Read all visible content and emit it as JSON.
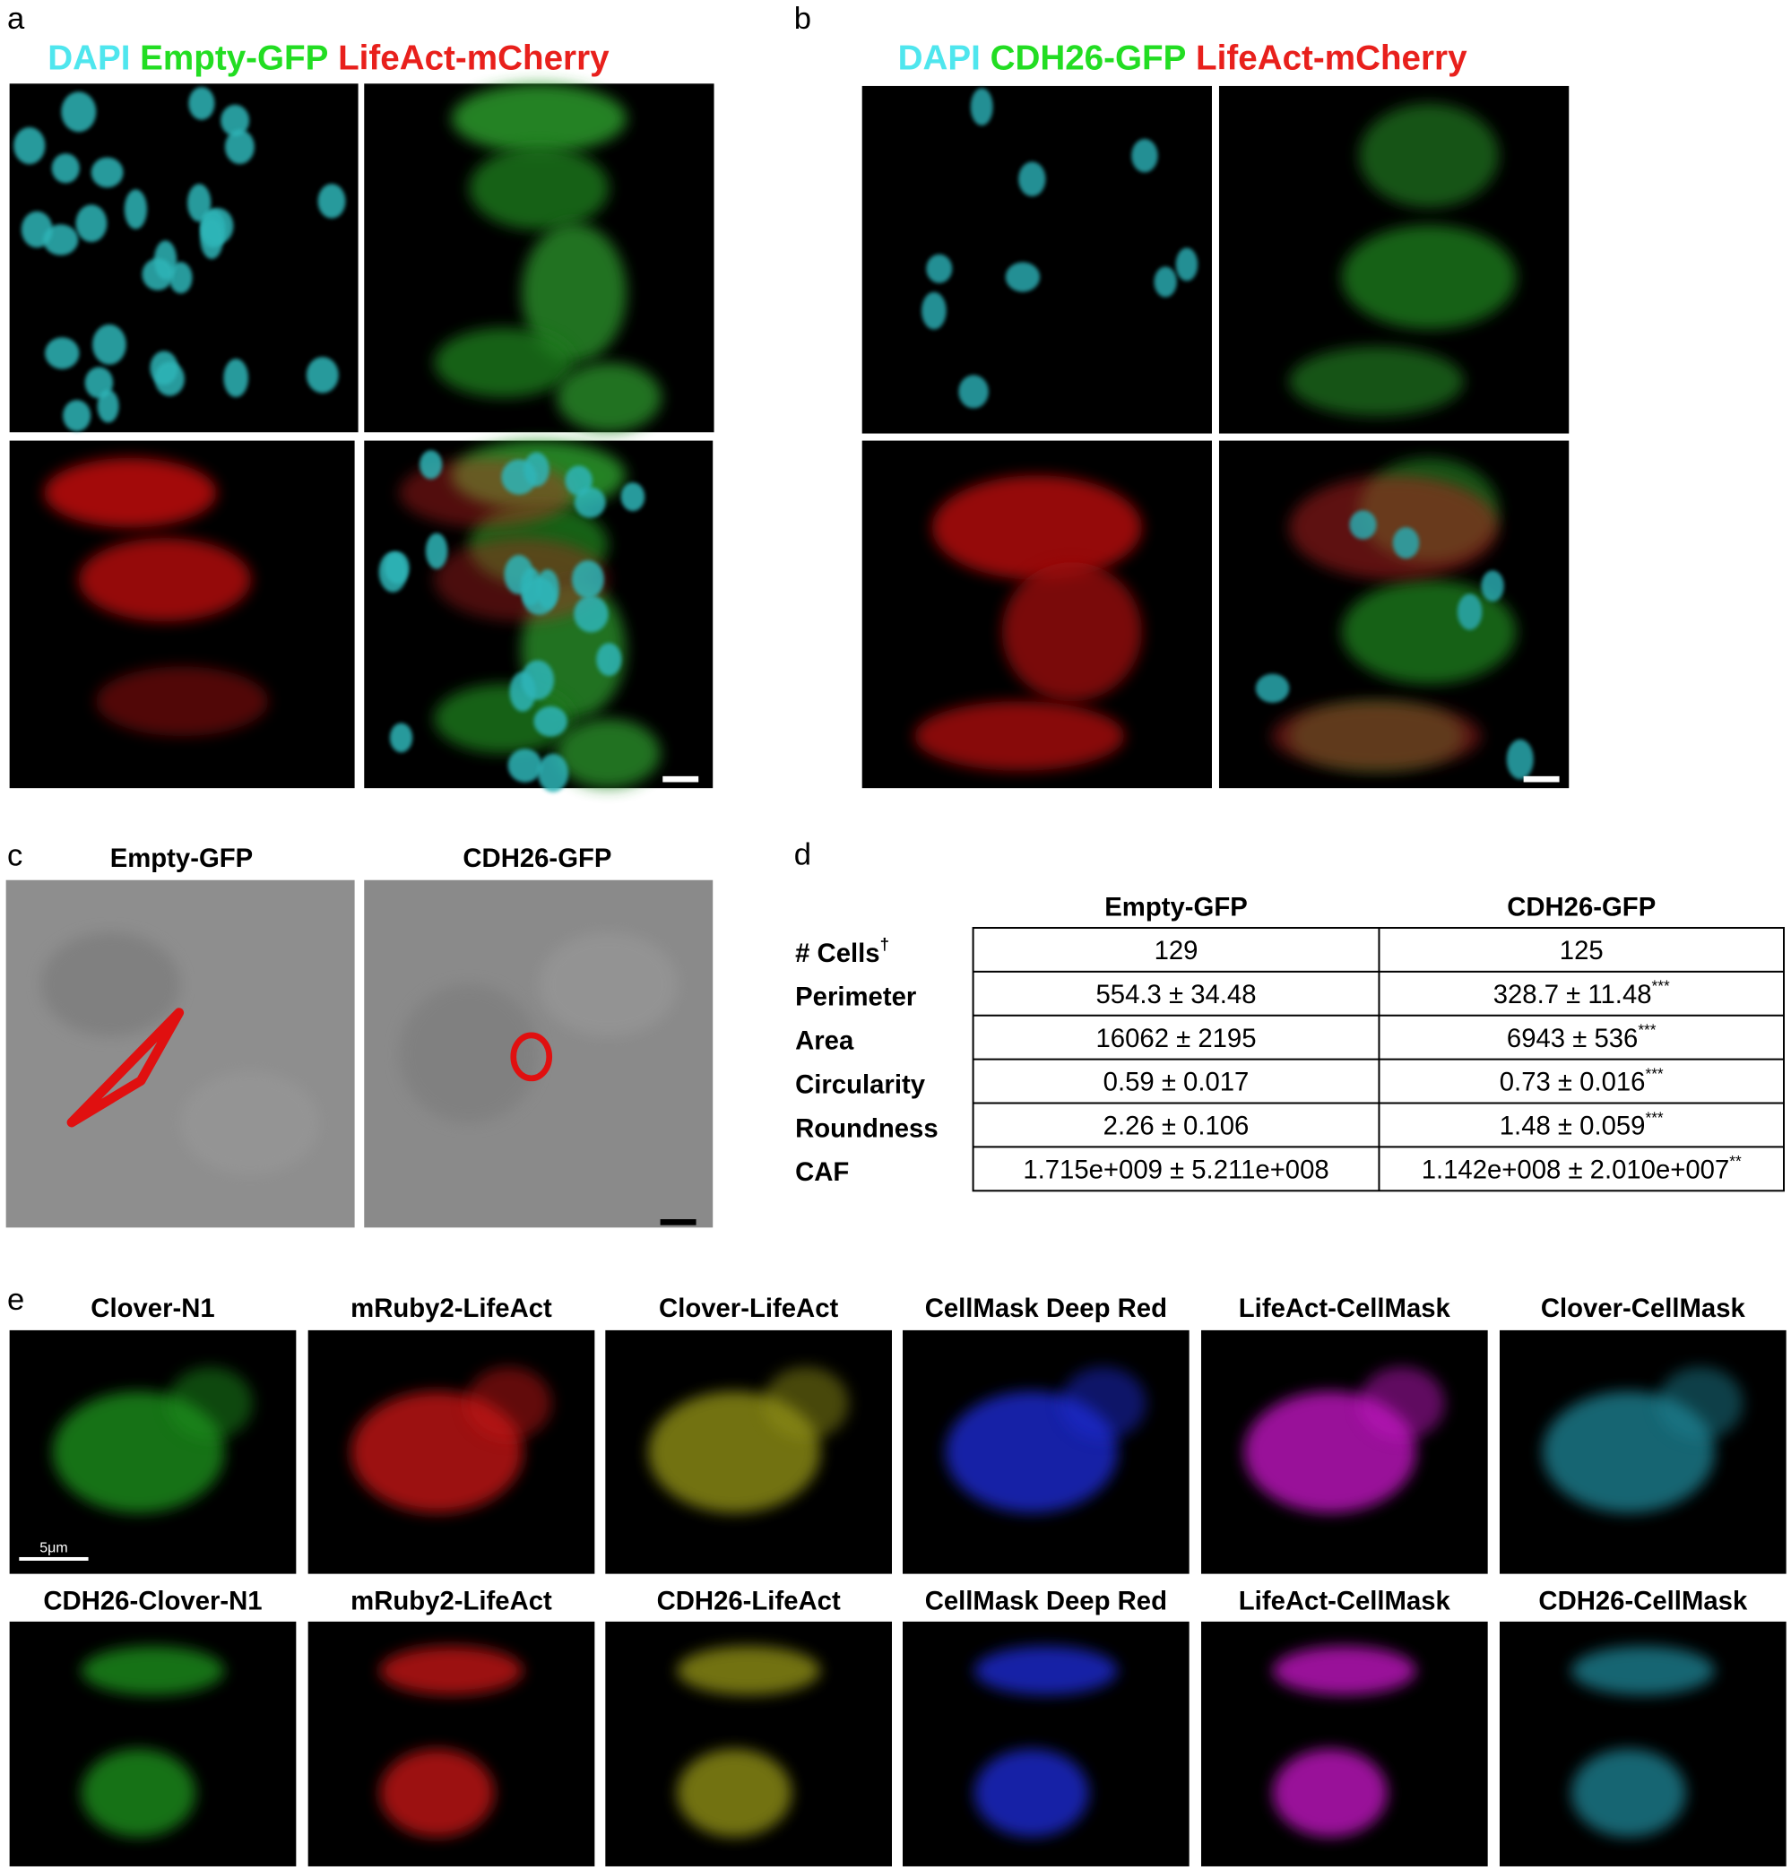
{
  "panel_a": {
    "label": "a",
    "title": [
      "DAPI",
      "Empty-GFP",
      "LifeAct-mCherry"
    ]
  },
  "panel_b": {
    "label": "b",
    "title": [
      "DAPI",
      "CDH26-GFP",
      "LifeAct-mCherry"
    ]
  },
  "panel_c": {
    "label": "c",
    "images": [
      "Empty-GFP",
      "CDH26-GFP"
    ]
  },
  "panel_d": {
    "label": "d",
    "table": {
      "columns": [
        "Empty-GFP",
        "CDH26-GFP"
      ],
      "rows": [
        {
          "label": "# Cells",
          "label_sup": "†",
          "cells": [
            {
              "text": "129"
            },
            {
              "text": "125"
            }
          ]
        },
        {
          "label": "Perimeter",
          "cells": [
            {
              "text": "554.3 ± 34.48"
            },
            {
              "text": "328.7 ± 11.48",
              "sup": "***"
            }
          ]
        },
        {
          "label": "Area",
          "cells": [
            {
              "text": "16062 ± 2195"
            },
            {
              "text": "6943 ± 536",
              "sup": "***"
            }
          ]
        },
        {
          "label": "Circularity",
          "cells": [
            {
              "text": "0.59 ± 0.017"
            },
            {
              "text": "0.73 ± 0.016",
              "sup": "***"
            }
          ]
        },
        {
          "label": "Roundness",
          "cells": [
            {
              "text": "2.26 ± 0.106"
            },
            {
              "text": "1.48 ± 0.059",
              "sup": "***"
            }
          ]
        },
        {
          "label": "CAF",
          "cells": [
            {
              "text": "1.715e+009 ± 5.211e+008"
            },
            {
              "text": "1.142e+008 ± 2.010e+007",
              "sup": "**"
            }
          ]
        }
      ]
    }
  },
  "panel_e": {
    "label": "e",
    "rows": [
      [
        "Clover-N1",
        "mRuby2-LifeAct",
        "Clover-LifeAct",
        "CellMask Deep Red",
        "LifeAct-CellMask",
        "Clover-CellMask"
      ],
      [
        "CDH26-Clover-N1",
        "mRuby2-LifeAct",
        "CDH26-LifeAct",
        "CellMask Deep Red",
        "LifeAct-CellMask",
        "CDH26-CellMask"
      ]
    ],
    "scale_bar": "5μm"
  }
}
